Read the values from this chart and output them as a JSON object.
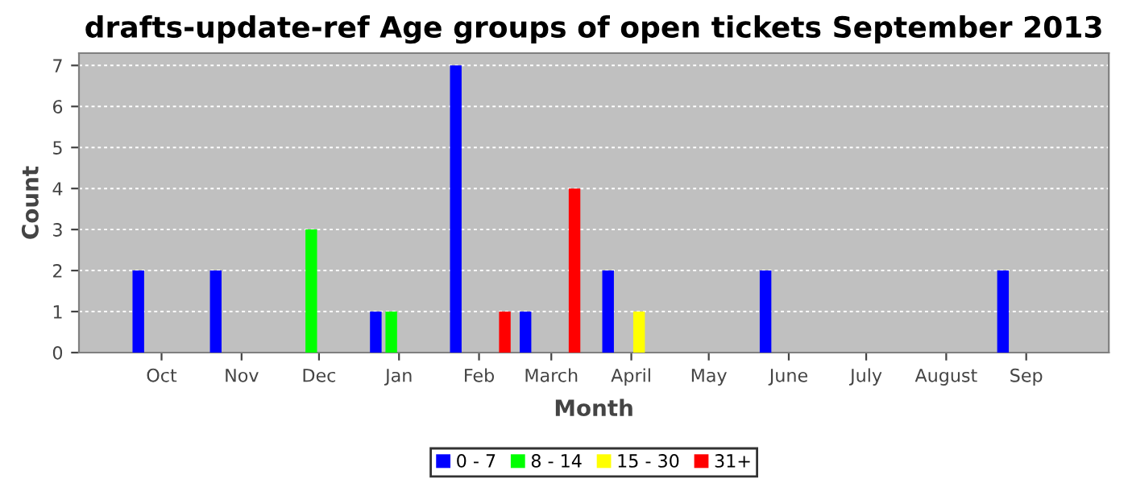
{
  "chart_data": {
    "type": "bar",
    "title": "drafts-update-ref Age groups of open tickets September 2013",
    "xlabel": "Month",
    "ylabel": "Count",
    "series": [
      {
        "name": "0 - 7",
        "color": "#0000ff",
        "x": [
          "2012-09-22",
          "2012-10-22",
          "2012-12-23",
          "2013-01-23",
          "2013-02-19",
          "2013-03-23",
          "2013-05-23",
          "2013-08-23"
        ],
        "values": [
          2,
          2,
          1,
          7,
          1,
          2,
          2,
          2
        ]
      },
      {
        "name": "8 - 14",
        "color": "#00ff00",
        "x": [
          "2012-11-28",
          "2012-12-29"
        ],
        "values": [
          3,
          1
        ]
      },
      {
        "name": "15 - 30",
        "color": "#ffff00",
        "x": [
          "2013-04-04"
        ],
        "values": [
          1
        ]
      },
      {
        "name": "31+",
        "color": "#ff0000",
        "x": [
          "2013-02-11",
          "2013-03-10"
        ],
        "values": [
          1,
          4
        ]
      }
    ],
    "xlim": [
      "2012-08-30",
      "2013-10-03"
    ],
    "xticks": [
      {
        "value": "2012-10-01",
        "label": "Oct"
      },
      {
        "value": "2012-11-01",
        "label": "Nov"
      },
      {
        "value": "2012-12-01",
        "label": "Dec"
      },
      {
        "value": "2013-01-01",
        "label": "Jan"
      },
      {
        "value": "2013-02-01",
        "label": "Feb"
      },
      {
        "value": "2013-03-01",
        "label": "March"
      },
      {
        "value": "2013-04-01",
        "label": "April"
      },
      {
        "value": "2013-05-01",
        "label": "May"
      },
      {
        "value": "2013-06-01",
        "label": "June"
      },
      {
        "value": "2013-07-01",
        "label": "July"
      },
      {
        "value": "2013-08-01",
        "label": "August"
      },
      {
        "value": "2013-09-01",
        "label": "Sep"
      }
    ],
    "ylim": [
      0,
      7.3
    ],
    "yticks": [
      0,
      1,
      2,
      3,
      4,
      5,
      6,
      7
    ],
    "grid": "y",
    "legend": "bottom"
  }
}
